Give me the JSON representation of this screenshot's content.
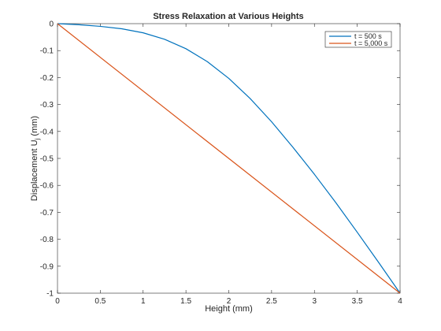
{
  "chart_data": {
    "type": "line",
    "title": "Stress Relaxation at Various Heights",
    "xlabel": "Height (mm)",
    "ylabel": "Displacement U",
    "ylabel_subscript": "j",
    "ylabel_unit": " (mm)",
    "xlim": [
      0,
      4
    ],
    "ylim": [
      -1,
      0
    ],
    "xticks": [
      0,
      0.5,
      1,
      1.5,
      2,
      2.5,
      3,
      3.5,
      4
    ],
    "xtick_labels": [
      "0",
      "0.5",
      "1",
      "1.5",
      "2",
      "2.5",
      "3",
      "3.5",
      "4"
    ],
    "yticks": [
      0,
      -0.1,
      -0.2,
      -0.3,
      -0.4,
      -0.5,
      -0.6,
      -0.7,
      -0.8,
      -0.9,
      -1
    ],
    "ytick_labels": [
      "0",
      "-0.1",
      "-0.2",
      "-0.3",
      "-0.4",
      "-0.5",
      "-0.6",
      "-0.7",
      "-0.8",
      "-0.9",
      "-1"
    ],
    "grid": false,
    "legend_position": "top-right",
    "series": [
      {
        "name": "t = 500 s",
        "color": "#0072BD",
        "x": [
          0,
          0.25,
          0.5,
          0.75,
          1.0,
          1.25,
          1.5,
          1.75,
          2.0,
          2.25,
          2.5,
          2.75,
          3.0,
          3.25,
          3.5,
          3.75,
          4.0
        ],
        "y": [
          0,
          -0.004,
          -0.01,
          -0.019,
          -0.034,
          -0.058,
          -0.093,
          -0.141,
          -0.203,
          -0.278,
          -0.364,
          -0.459,
          -0.559,
          -0.664,
          -0.774,
          -0.886,
          -1.0
        ]
      },
      {
        "name": "t = 5,000 s",
        "color": "#D95319",
        "x": [
          0,
          4
        ],
        "y": [
          0,
          -1
        ]
      }
    ]
  }
}
